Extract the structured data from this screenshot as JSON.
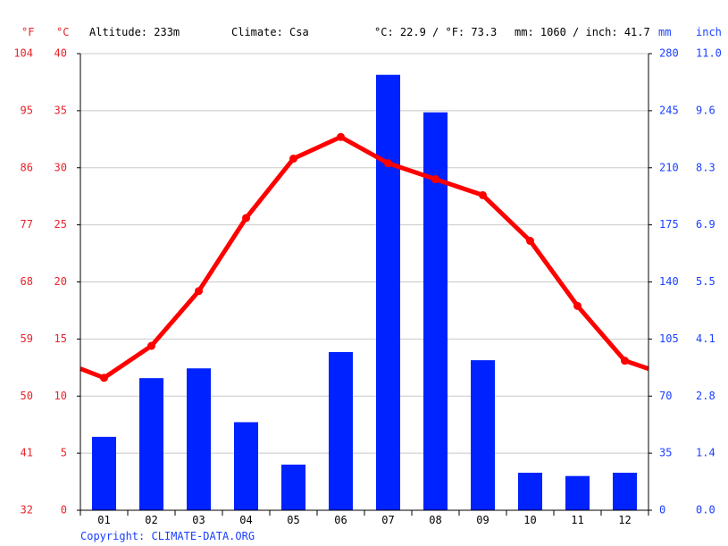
{
  "header": {
    "unit_f": "°F",
    "unit_c": "°C",
    "altitude": "Altitude: 233m",
    "climate": "Climate: Csa",
    "temp_avg": "°C: 22.9 / °F: 73.3",
    "precip_total": "mm: 1060 / inch: 41.7",
    "unit_mm": "mm",
    "unit_inch": "inch"
  },
  "copyright": "Copyright: CLIMATE-DATA.ORG",
  "colors": {
    "temperature": "#ff0000",
    "precipitation": "#0022ff",
    "temp_text": "#e8232a",
    "precip_text": "#1a3fff",
    "grid": "#c8c8c8"
  },
  "chart_data": {
    "type": "bar+line",
    "categories": [
      "01",
      "02",
      "03",
      "04",
      "05",
      "06",
      "07",
      "08",
      "09",
      "10",
      "11",
      "12"
    ],
    "series": [
      {
        "type": "bar",
        "axis": "right",
        "unit": "mm",
        "values": [
          45,
          81,
          87,
          54,
          28,
          97,
          267,
          244,
          92,
          23,
          21,
          23
        ]
      },
      {
        "type": "line",
        "axis": "left",
        "unit": "°C",
        "values": [
          11.6,
          14.4,
          19.2,
          25.6,
          30.8,
          32.7,
          30.4,
          29.0,
          27.6,
          23.6,
          17.9,
          13.1
        ],
        "edge_start": 12.4,
        "edge_end": 12.4
      }
    ],
    "y_left_c": {
      "min": 0,
      "max": 40,
      "ticks": [
        "0",
        "5",
        "10",
        "15",
        "20",
        "25",
        "30",
        "35",
        "40"
      ]
    },
    "y_left_f": {
      "ticks": [
        "32",
        "41",
        "50",
        "59",
        "68",
        "77",
        "86",
        "95",
        "104"
      ]
    },
    "y_right_mm": {
      "min": 0,
      "max": 280,
      "ticks": [
        "0",
        "35",
        "70",
        "105",
        "140",
        "175",
        "210",
        "245",
        "280"
      ]
    },
    "y_right_inch": {
      "ticks": [
        "0.0",
        "1.4",
        "2.8",
        "4.1",
        "5.5",
        "6.9",
        "8.3",
        "9.6",
        "11.0"
      ]
    },
    "grid": true,
    "legend": "none"
  }
}
